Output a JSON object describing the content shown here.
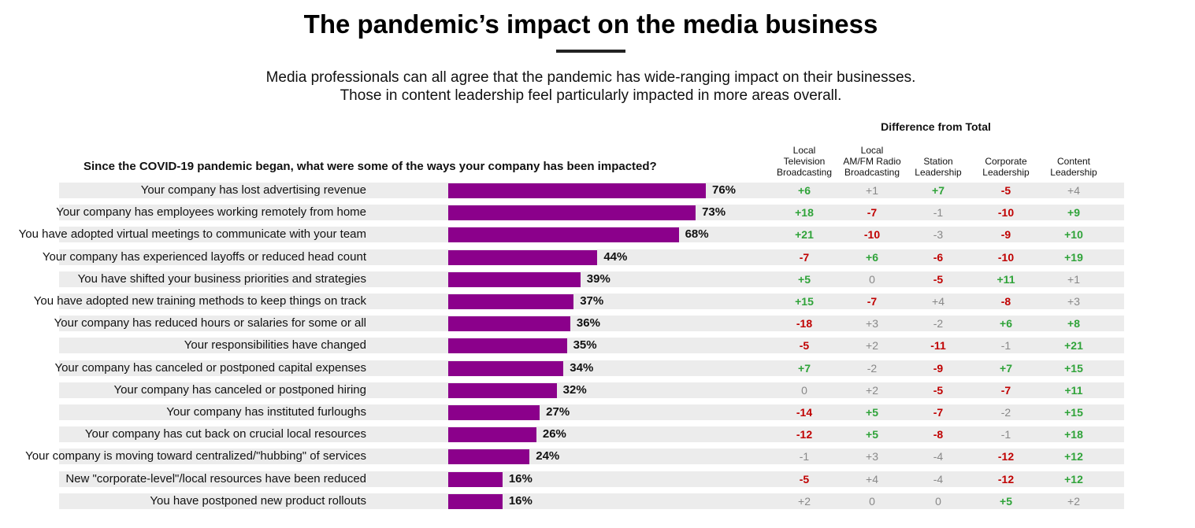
{
  "header": {
    "title": "The pandemic’s impact on the media business",
    "subtitle_line1": "Media professionals can all agree that the pandemic has wide-ranging impact on their businesses.",
    "subtitle_line2": "Those in content leadership feel particularly impacted in more areas overall."
  },
  "colors": {
    "bar": "#8b008b",
    "positive": "#2fa339",
    "negative": "#c00000",
    "neutral": "#888888",
    "row_band": "#ececec"
  },
  "chart_data": {
    "type": "bar",
    "orientation": "horizontal",
    "question": "Since the COVID-19 pandemic began, what were some of the ways your company has been impacted?",
    "diff_header": "Difference from Total",
    "diff_columns": [
      [
        "Local",
        "Television",
        "Broadcasting"
      ],
      [
        "Local",
        "AM/FM Radio",
        "Broadcasting"
      ],
      [
        "Station",
        "Leadership"
      ],
      [
        "Corporate",
        "Leadership"
      ],
      [
        "Content",
        "Leadership"
      ]
    ],
    "rows": [
      {
        "label": "Your company has lost advertising revenue",
        "value": 76,
        "value_label": "76%",
        "diffs": [
          "+6",
          "+1",
          "+7",
          "-5",
          "+4"
        ],
        "styles": [
          "pos",
          "neu",
          "pos",
          "neg",
          "neu"
        ]
      },
      {
        "label": "Your company has employees working remotely from home",
        "value": 73,
        "value_label": "73%",
        "diffs": [
          "+18",
          "-7",
          "-1",
          "-10",
          "+9"
        ],
        "styles": [
          "pos",
          "neg",
          "neu",
          "neg",
          "pos"
        ]
      },
      {
        "label": "You have adopted virtual meetings to communicate with your team",
        "value": 68,
        "value_label": "68%",
        "diffs": [
          "+21",
          "-10",
          "-3",
          "-9",
          "+10"
        ],
        "styles": [
          "pos",
          "neg",
          "neu",
          "neg",
          "pos"
        ]
      },
      {
        "label": "Your company has experienced layoffs or reduced head count",
        "value": 44,
        "value_label": "44%",
        "diffs": [
          "-7",
          "+6",
          "-6",
          "-10",
          "+19"
        ],
        "styles": [
          "neg",
          "pos",
          "neg",
          "neg",
          "pos"
        ]
      },
      {
        "label": "You have shifted your business priorities and strategies",
        "value": 39,
        "value_label": "39%",
        "diffs": [
          "+5",
          "0",
          "-5",
          "+11",
          "+1"
        ],
        "styles": [
          "pos",
          "neu",
          "neg",
          "pos",
          "neu"
        ]
      },
      {
        "label": "You have adopted new training methods to keep things on track",
        "value": 37,
        "value_label": "37%",
        "diffs": [
          "+15",
          "-7",
          "+4",
          "-8",
          "+3"
        ],
        "styles": [
          "pos",
          "neg",
          "neu",
          "neg",
          "neu"
        ]
      },
      {
        "label": "Your company has reduced hours or salaries for some or all",
        "value": 36,
        "value_label": "36%",
        "diffs": [
          "-18",
          "+3",
          "-2",
          "+6",
          "+8"
        ],
        "styles": [
          "neg",
          "neu",
          "neu",
          "pos",
          "pos"
        ]
      },
      {
        "label": "Your responsibilities have changed",
        "value": 35,
        "value_label": "35%",
        "diffs": [
          "-5",
          "+2",
          "-11",
          "-1",
          "+21"
        ],
        "styles": [
          "neg",
          "neu",
          "neg",
          "neu",
          "pos"
        ]
      },
      {
        "label": "Your company has canceled or postponed capital expenses",
        "value": 34,
        "value_label": "34%",
        "diffs": [
          "+7",
          "-2",
          "-9",
          "+7",
          "+15"
        ],
        "styles": [
          "pos",
          "neu",
          "neg",
          "pos",
          "pos"
        ]
      },
      {
        "label": "Your company has canceled or postponed hiring",
        "value": 32,
        "value_label": "32%",
        "diffs": [
          "0",
          "+2",
          "-5",
          "-7",
          "+11"
        ],
        "styles": [
          "neu",
          "neu",
          "neg",
          "neg",
          "pos"
        ]
      },
      {
        "label": "Your company has instituted furloughs",
        "value": 27,
        "value_label": "27%",
        "diffs": [
          "-14",
          "+5",
          "-7",
          "-2",
          "+15"
        ],
        "styles": [
          "neg",
          "pos",
          "neg",
          "neu",
          "pos"
        ]
      },
      {
        "label": "Your company has cut back on crucial local resources",
        "value": 26,
        "value_label": "26%",
        "diffs": [
          "-12",
          "+5",
          "-8",
          "-1",
          "+18"
        ],
        "styles": [
          "neg",
          "pos",
          "neg",
          "neu",
          "pos"
        ]
      },
      {
        "label": "Your company is moving toward centralized/\"hubbing\" of services",
        "value": 24,
        "value_label": "24%",
        "diffs": [
          "-1",
          "+3",
          "-4",
          "-12",
          "+12"
        ],
        "styles": [
          "neu",
          "neu",
          "neu",
          "neg",
          "pos"
        ]
      },
      {
        "label": "New \"corporate-level\"/local resources have been reduced",
        "value": 16,
        "value_label": "16%",
        "diffs": [
          "-5",
          "+4",
          "-4",
          "-12",
          "+12"
        ],
        "styles": [
          "neg",
          "neu",
          "neu",
          "neg",
          "pos"
        ]
      },
      {
        "label": "You have postponed new product rollouts",
        "value": 16,
        "value_label": "16%",
        "diffs": [
          "+2",
          "0",
          "0",
          "+5",
          "+2"
        ],
        "styles": [
          "neu",
          "neu",
          "neu",
          "pos",
          "neu"
        ]
      }
    ],
    "xlim": [
      0,
      76
    ]
  }
}
